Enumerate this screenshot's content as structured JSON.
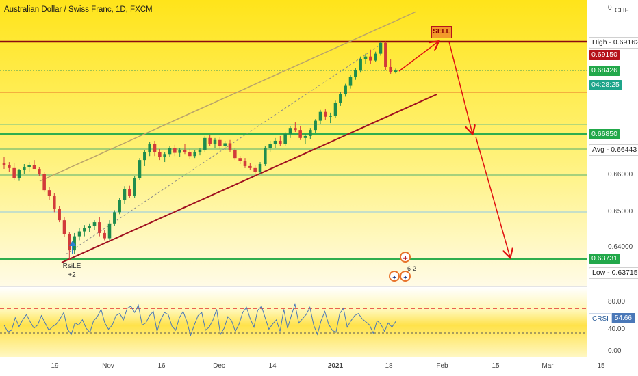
{
  "header": {
    "title": "Australian Dollar / Swiss Franc, 1D, FXCM",
    "currency": "CHF",
    "top_tick": "0"
  },
  "price_labels": {
    "high": "High - 0.69162",
    "red_level": "0.69150",
    "last_price": "0.68426",
    "countdown": "04:28:25",
    "green_level": "0.66850",
    "avg": "Avg - 0.66443",
    "support": "0.63731",
    "low": "Low - 0.63715"
  },
  "price_axis": [
    "0.66000",
    "0.65000",
    "0.64000"
  ],
  "osc_axis": [
    "80.00",
    "40.00",
    "0.00"
  ],
  "crsi": {
    "name": "CRSI",
    "value": "54.66"
  },
  "dates": [
    "19",
    "Nov",
    "16",
    "Dec",
    "14",
    "2021",
    "18",
    "Feb",
    "15",
    "Mar",
    "15"
  ],
  "annotations": {
    "sell": "SELL",
    "rsile": "RsiLE",
    "rsile_count": "+2",
    "event_count_a": "6",
    "event_count_b": "2"
  },
  "colors": {
    "up": "#1e8c4e",
    "down": "#d23a3a",
    "trend": "#a01020",
    "arrow": "#e01010",
    "support": "#2fae4e"
  },
  "chart_data": {
    "type": "candlestick",
    "symbol": "AUDCHF",
    "timeframe": "1D",
    "exchange": "FXCM",
    "high": 0.69162,
    "low": 0.63715,
    "last": 0.68426,
    "levels": [
      0.6915,
      0.6685,
      0.66443,
      0.63731
    ],
    "candles_ohlc_approx": [
      [
        0.6613,
        0.6627,
        0.6598,
        0.6607
      ],
      [
        0.6607,
        0.6615,
        0.659,
        0.66
      ],
      [
        0.66,
        0.6612,
        0.657,
        0.6575
      ],
      [
        0.6575,
        0.6598,
        0.6568,
        0.6595
      ],
      [
        0.6595,
        0.661,
        0.6585,
        0.6602
      ],
      [
        0.6602,
        0.6615,
        0.659,
        0.6608
      ],
      [
        0.6608,
        0.662,
        0.66,
        0.6598
      ],
      [
        0.6598,
        0.6602,
        0.658,
        0.6585
      ],
      [
        0.6585,
        0.659,
        0.654,
        0.6545
      ],
      [
        0.6545,
        0.6552,
        0.652,
        0.653
      ],
      [
        0.653,
        0.6538,
        0.649,
        0.6498
      ],
      [
        0.6498,
        0.6505,
        0.6465,
        0.647
      ],
      [
        0.647,
        0.6478,
        0.6428,
        0.6435
      ],
      [
        0.6435,
        0.644,
        0.6372,
        0.6395
      ],
      [
        0.6395,
        0.6438,
        0.6385,
        0.643
      ],
      [
        0.643,
        0.645,
        0.642,
        0.6442
      ],
      [
        0.6442,
        0.6458,
        0.643,
        0.645
      ],
      [
        0.645,
        0.6462,
        0.644,
        0.6455
      ],
      [
        0.6455,
        0.647,
        0.6445,
        0.6465
      ],
      [
        0.6465,
        0.6478,
        0.643,
        0.6438
      ],
      [
        0.6438,
        0.6445,
        0.642,
        0.6425
      ],
      [
        0.6425,
        0.647,
        0.642,
        0.6462
      ],
      [
        0.6462,
        0.6495,
        0.6455,
        0.649
      ],
      [
        0.649,
        0.6525,
        0.6485,
        0.652
      ],
      [
        0.652,
        0.6555,
        0.651,
        0.6548
      ],
      [
        0.6548,
        0.6556,
        0.6525,
        0.653
      ],
      [
        0.653,
        0.658,
        0.6525,
        0.6575
      ],
      [
        0.6575,
        0.6625,
        0.657,
        0.662
      ],
      [
        0.662,
        0.6645,
        0.6605,
        0.664
      ],
      [
        0.664,
        0.6665,
        0.663,
        0.666
      ],
      [
        0.666,
        0.6668,
        0.663,
        0.664
      ],
      [
        0.664,
        0.6648,
        0.662,
        0.6628
      ],
      [
        0.6628,
        0.664,
        0.6615,
        0.6635
      ],
      [
        0.6635,
        0.6655,
        0.6628,
        0.665
      ],
      [
        0.665,
        0.6658,
        0.663,
        0.6638
      ],
      [
        0.6638,
        0.665,
        0.6628,
        0.6645
      ],
      [
        0.6645,
        0.666,
        0.6635,
        0.664
      ],
      [
        0.664,
        0.6648,
        0.6622,
        0.663
      ],
      [
        0.663,
        0.6645,
        0.6625,
        0.664
      ],
      [
        0.664,
        0.665,
        0.6632,
        0.6645
      ],
      [
        0.6645,
        0.668,
        0.664,
        0.6675
      ],
      [
        0.6675,
        0.6682,
        0.6655,
        0.666
      ],
      [
        0.666,
        0.6675,
        0.665,
        0.667
      ],
      [
        0.667,
        0.6678,
        0.6648,
        0.6655
      ],
      [
        0.6655,
        0.6668,
        0.6645,
        0.6662
      ],
      [
        0.6662,
        0.667,
        0.664,
        0.6645
      ],
      [
        0.6645,
        0.665,
        0.662,
        0.6625
      ],
      [
        0.6625,
        0.663,
        0.661,
        0.6618
      ],
      [
        0.6618,
        0.6625,
        0.66,
        0.6605
      ],
      [
        0.6605,
        0.6612,
        0.6595,
        0.66
      ],
      [
        0.66,
        0.6608,
        0.6585,
        0.659
      ],
      [
        0.659,
        0.6615,
        0.6585,
        0.661
      ],
      [
        0.661,
        0.6655,
        0.6605,
        0.665
      ],
      [
        0.665,
        0.6668,
        0.664,
        0.666
      ],
      [
        0.666,
        0.6675,
        0.665,
        0.6668
      ],
      [
        0.6668,
        0.668,
        0.6655,
        0.666
      ],
      [
        0.666,
        0.669,
        0.6655,
        0.6685
      ],
      [
        0.6685,
        0.6705,
        0.6675,
        0.67
      ],
      [
        0.67,
        0.6715,
        0.669,
        0.6695
      ],
      [
        0.6695,
        0.6705,
        0.667,
        0.6675
      ],
      [
        0.6675,
        0.6685,
        0.666,
        0.668
      ],
      [
        0.668,
        0.67,
        0.6672,
        0.6695
      ],
      [
        0.6695,
        0.6722,
        0.6688,
        0.6718
      ],
      [
        0.6718,
        0.6745,
        0.671,
        0.674
      ],
      [
        0.674,
        0.6748,
        0.672,
        0.6728
      ],
      [
        0.6728,
        0.6738,
        0.6712,
        0.673
      ],
      [
        0.673,
        0.6768,
        0.6725,
        0.6762
      ],
      [
        0.6762,
        0.679,
        0.6755,
        0.6785
      ],
      [
        0.6785,
        0.681,
        0.6778,
        0.6805
      ],
      [
        0.6805,
        0.6832,
        0.6798,
        0.6828
      ],
      [
        0.6828,
        0.685,
        0.682,
        0.6845
      ],
      [
        0.6845,
        0.6878,
        0.6838,
        0.6872
      ],
      [
        0.6872,
        0.6885,
        0.686,
        0.6878
      ],
      [
        0.6878,
        0.6895,
        0.686,
        0.6868
      ],
      [
        0.6868,
        0.689,
        0.6865,
        0.6885
      ],
      [
        0.6885,
        0.6916,
        0.688,
        0.6912
      ],
      [
        0.6912,
        0.6916,
        0.6845,
        0.6852
      ],
      [
        0.6852,
        0.6872,
        0.6835,
        0.684
      ],
      [
        0.684,
        0.6848,
        0.6836,
        0.6843
      ]
    ],
    "crsi_values": [
      48,
      35,
      38,
      62,
      45,
      58,
      68,
      54,
      42,
      48,
      66,
      52,
      38,
      45,
      50,
      60,
      72,
      40,
      30,
      52,
      48,
      58,
      42,
      34,
      56,
      64,
      78,
      52,
      40,
      48,
      66,
      70,
      58,
      80,
      84,
      72,
      86,
      48,
      52,
      66,
      74,
      36,
      58,
      72,
      68,
      46,
      38,
      62,
      74,
      55,
      28,
      48,
      66,
      72,
      38,
      44,
      58,
      78,
      30,
      42,
      64,
      56,
      36,
      50,
      72,
      82,
      60,
      44,
      76,
      84,
      62,
      40,
      50,
      58,
      36,
      78,
      42,
      66,
      88,
      52,
      60,
      68,
      82,
      48,
      30,
      56,
      74,
      50,
      38,
      34,
      70,
      80,
      44,
      56,
      66,
      70,
      60,
      54,
      48,
      32,
      56,
      50,
      36,
      52,
      44,
      54.66
    ]
  }
}
